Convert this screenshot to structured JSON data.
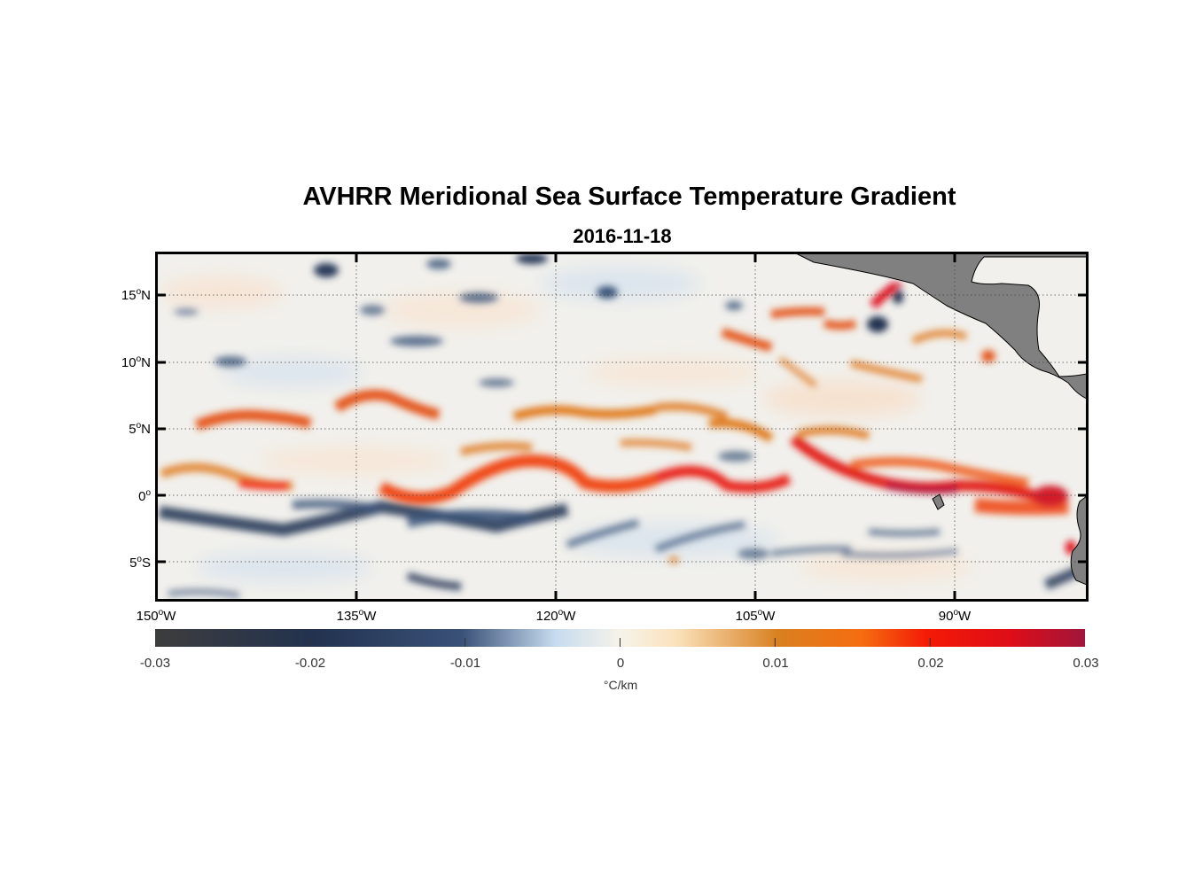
{
  "title": "AVHRR Meridional Sea Surface Temperature Gradient",
  "subtitle": "2016-11-18",
  "lat_labels": [
    {
      "num": "15",
      "deg": "o",
      "hem": "N"
    },
    {
      "num": "10",
      "deg": "o",
      "hem": "N"
    },
    {
      "num": "5",
      "deg": "o",
      "hem": "N"
    },
    {
      "num": "0",
      "deg": "o",
      "hem": ""
    },
    {
      "num": "5",
      "deg": "o",
      "hem": "S"
    }
  ],
  "lon_labels": [
    {
      "num": "150",
      "deg": "o",
      "hem": "W"
    },
    {
      "num": "135",
      "deg": "o",
      "hem": "W"
    },
    {
      "num": "120",
      "deg": "o",
      "hem": "W"
    },
    {
      "num": "105",
      "deg": "o",
      "hem": "W"
    },
    {
      "num": "90",
      "deg": "o",
      "hem": "W"
    }
  ],
  "colorbar": {
    "ticks": [
      "-0.03",
      "-0.02",
      "-0.01",
      "0",
      "0.01",
      "0.02",
      "0.03"
    ],
    "unit": "°C/km",
    "colors": [
      "#3d3d3d",
      "#22324f",
      "#3a5178",
      "#c7dbef",
      "#f6f3ea",
      "#fbe2bd",
      "#d98020",
      "#f56d10",
      "#f41a06",
      "#de0d18",
      "#a0163a"
    ]
  },
  "extent": {
    "lon_min": -150,
    "lon_max": -80,
    "lat_min": -8,
    "lat_max": 18
  },
  "land_color": "#808080"
}
